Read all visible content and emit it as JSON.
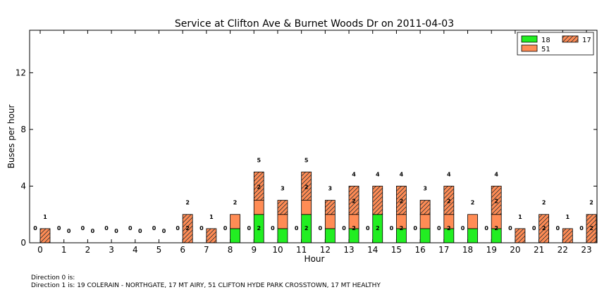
{
  "chart_data": {
    "type": "bar",
    "title": "Service at Clifton Ave & Burnet Woods Dr on 2011-04-03",
    "xlabel": "Hour",
    "ylabel": "Buses per hour",
    "ylim": [
      0,
      15
    ],
    "yticks": [
      0,
      4,
      8,
      12
    ],
    "grid": false,
    "legend_placement": "top-right",
    "categories": [
      "0",
      "1",
      "2",
      "3",
      "4",
      "5",
      "6",
      "7",
      "8",
      "9",
      "10",
      "11",
      "12",
      "13",
      "14",
      "15",
      "16",
      "17",
      "18",
      "19",
      "20",
      "21",
      "22",
      "23"
    ],
    "series": [
      {
        "name": "18",
        "color": "#22ee22",
        "hatch": false,
        "values": [
          0,
          0,
          0,
          0,
          0,
          0,
          0,
          0,
          1,
          2,
          1,
          2,
          1,
          1,
          2,
          1,
          1,
          1,
          1,
          1,
          0,
          0,
          0,
          0
        ]
      },
      {
        "name": "51",
        "color": "#ff8c55",
        "hatch": false,
        "values": [
          0,
          0,
          0,
          0,
          0,
          0,
          0,
          0,
          1,
          1,
          1,
          1,
          1,
          1,
          0,
          1,
          1,
          1,
          1,
          1,
          0,
          0,
          0,
          0
        ]
      },
      {
        "name": "17",
        "color": "#ff8c55",
        "hatch": true,
        "values": [
          1,
          0,
          0,
          0,
          0,
          0,
          2,
          1,
          0,
          2,
          1,
          2,
          1,
          2,
          2,
          2,
          1,
          2,
          0,
          2,
          1,
          2,
          1,
          2
        ]
      }
    ],
    "direction0_labels": [
      "0",
      "0",
      "0",
      "0",
      "0",
      "0",
      "0",
      "0",
      "0",
      "0",
      "0",
      "0",
      "0",
      "0",
      "0",
      "0",
      "0",
      "0",
      "0",
      "0",
      "0",
      "0",
      "0",
      "0"
    ],
    "direction1_totals": [
      "1",
      "0",
      "0",
      "0",
      "0",
      "0",
      "2",
      "1",
      "2",
      "5",
      "3",
      "5",
      "3",
      "4",
      "4",
      "4",
      "3",
      "4",
      "2",
      "4",
      "1",
      "2",
      "1",
      "2"
    ],
    "inner_labels": [
      "",
      "",
      "",
      "",
      "",
      "",
      "2",
      "",
      "",
      "2",
      "",
      "2",
      "",
      "2",
      "2",
      "2",
      "",
      "2",
      "",
      "2",
      "",
      "2",
      "",
      "2"
    ],
    "inner_labels2": [
      "",
      "",
      "",
      "",
      "",
      "",
      "",
      "",
      "",
      "2",
      "",
      "2",
      "",
      "2",
      "",
      "2",
      "",
      "2",
      "",
      "2",
      "",
      "",
      "",
      ""
    ]
  },
  "footnotes": {
    "direction0": "Direction 0 is:",
    "direction1": "Direction 1 is: 19 COLERAIN - NORTHGATE, 17 MT AIRY, 51 CLIFTON HYDE PARK CROSSTOWN, 17 MT HEALTHY"
  }
}
